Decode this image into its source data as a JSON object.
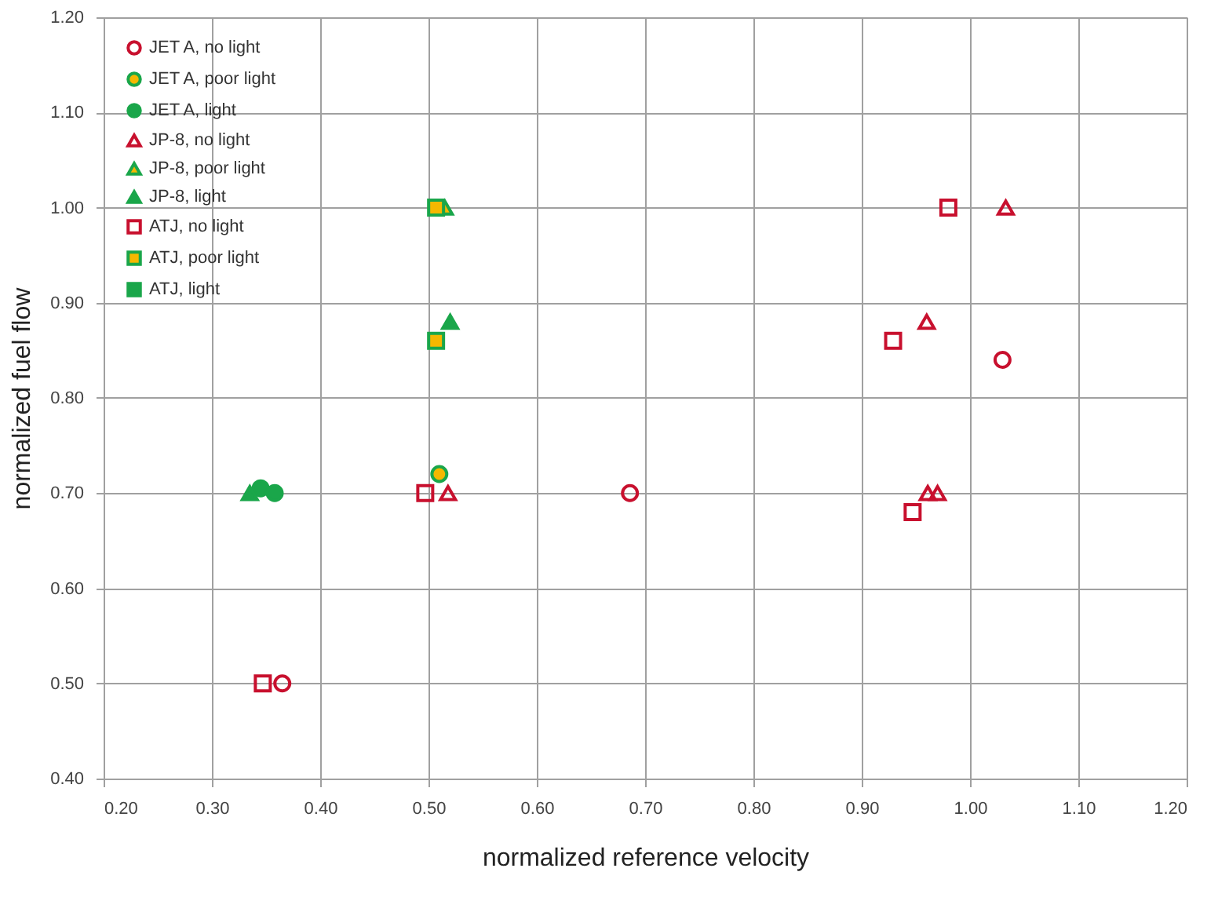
{
  "chart_data": {
    "type": "scatter",
    "xlabel": "normalized reference velocity",
    "ylabel": "normalized fuel flow",
    "xlim": [
      0.2,
      1.2
    ],
    "ylim": [
      0.4,
      1.2
    ],
    "xticks": [
      {
        "value": 0.2,
        "label": "0.20"
      },
      {
        "value": 0.3,
        "label": "0.30"
      },
      {
        "value": 0.4,
        "label": "0.40"
      },
      {
        "value": 0.5,
        "label": "0.50"
      },
      {
        "value": 0.6,
        "label": "0.60"
      },
      {
        "value": 0.7,
        "label": "0.70"
      },
      {
        "value": 0.8,
        "label": "0.80"
      },
      {
        "value": 0.9,
        "label": "0.90"
      },
      {
        "value": 1.0,
        "label": "1.00"
      },
      {
        "value": 1.1,
        "label": "1.10"
      },
      {
        "value": 1.2,
        "label": "1.20"
      }
    ],
    "yticks": [
      {
        "value": 0.4,
        "label": "0.40"
      },
      {
        "value": 0.5,
        "label": "0.50"
      },
      {
        "value": 0.6,
        "label": "0.60"
      },
      {
        "value": 0.7,
        "label": "0.70"
      },
      {
        "value": 0.8,
        "label": "0.80"
      },
      {
        "value": 0.9,
        "label": "0.90"
      },
      {
        "value": 1.0,
        "label": "1.00"
      },
      {
        "value": 1.1,
        "label": "1.10"
      },
      {
        "value": 1.2,
        "label": "1.20"
      }
    ],
    "grid": true,
    "legend": "top left",
    "series": [
      {
        "name": "JET A, no light",
        "color": "#c8102e",
        "marker": "circle",
        "x": [
          0.686,
          1.03,
          0.365
        ],
        "values": [
          0.7,
          0.84,
          0.5
        ]
      },
      {
        "name": "JET A, poor light",
        "color": "#f5b800",
        "marker": "circle",
        "x": [
          0.51
        ],
        "values": [
          0.72
        ]
      },
      {
        "name": "JET A, light",
        "color": "#1aa64a",
        "marker": "circle",
        "x": [
          0.345,
          0.358
        ],
        "values": [
          0.705,
          0.7
        ]
      },
      {
        "name": "JP-8, no light",
        "color": "#c8102e",
        "marker": "triangle",
        "x": [
          0.518,
          1.033,
          0.96,
          0.961,
          0.97
        ],
        "values": [
          0.7,
          1.0,
          0.88,
          0.7,
          0.7
        ]
      },
      {
        "name": "JP-8, poor light",
        "color": "#f5b800",
        "marker": "triangle",
        "x": [
          0.515
        ],
        "values": [
          1.0
        ]
      },
      {
        "name": "JP-8, light",
        "color": "#1aa64a",
        "marker": "triangle",
        "x": [
          0.52,
          0.335
        ],
        "values": [
          0.88,
          0.7
        ]
      },
      {
        "name": "ATJ, no light",
        "color": "#c8102e",
        "marker": "square",
        "x": [
          0.98,
          0.929,
          0.947,
          0.497,
          0.347
        ],
        "values": [
          1.0,
          0.86,
          0.68,
          0.7,
          0.5
        ]
      },
      {
        "name": "ATJ, poor light",
        "color": "#f5b800",
        "marker": "square",
        "x": [
          0.507,
          0.507
        ],
        "values": [
          1.0,
          0.86
        ]
      },
      {
        "name": "ATJ, light",
        "color": "#1aa64a",
        "marker": "square"
      }
    ]
  }
}
